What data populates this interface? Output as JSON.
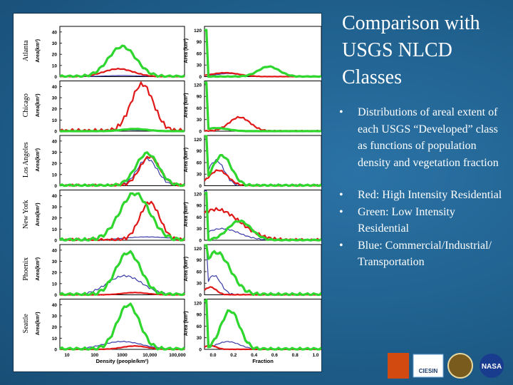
{
  "slide": {
    "title": "Comparison with USGS NLCD Classes",
    "bullets": [
      "Distributions of areal extent of each USGS “Developed” class as functions of population density and vegetation fraction",
      "Red: High Intensity Residential",
      "Green: Low Intensity Residential",
      "Blue: Commercial/Industrial/ Transportation"
    ],
    "bullet_glyph": "•"
  },
  "figure": {
    "cities": [
      "Atlanta",
      "Chicago",
      "Los Angeles",
      "New York",
      "Phoenix",
      "Seattle"
    ],
    "left_ylabel": "Area(km²)",
    "right_ylabel": "Area (km²)",
    "left_yticks": [
      "0",
      "10",
      "20",
      "30",
      "40"
    ],
    "right_yticks": [
      "0",
      "30",
      "60",
      "90",
      "120"
    ],
    "left_xticks": [
      "10",
      "100",
      "1000",
      "10,000",
      "100,000"
    ],
    "right_xticks": [
      "0.0",
      "0.2",
      "0.4",
      "0.6",
      "0.8",
      "1.0"
    ],
    "left_xlabel": "Density (people/km²)",
    "right_xlabel": "Fraction",
    "colors": {
      "high": "#e01818",
      "low": "#2ed62e",
      "commercial": "#3a3aa8",
      "axis": "#000000"
    }
  },
  "logos": [
    {
      "name": "rpdac-logo",
      "color": "#d24a10"
    },
    {
      "name": "ciesin-logo",
      "color": "#6fa6d6",
      "text": "CIESIN"
    },
    {
      "name": "seal-logo",
      "color": "#7a5b1e"
    },
    {
      "name": "nasa-logo",
      "color": "#1a3c8f",
      "text": "NASA"
    }
  ]
}
